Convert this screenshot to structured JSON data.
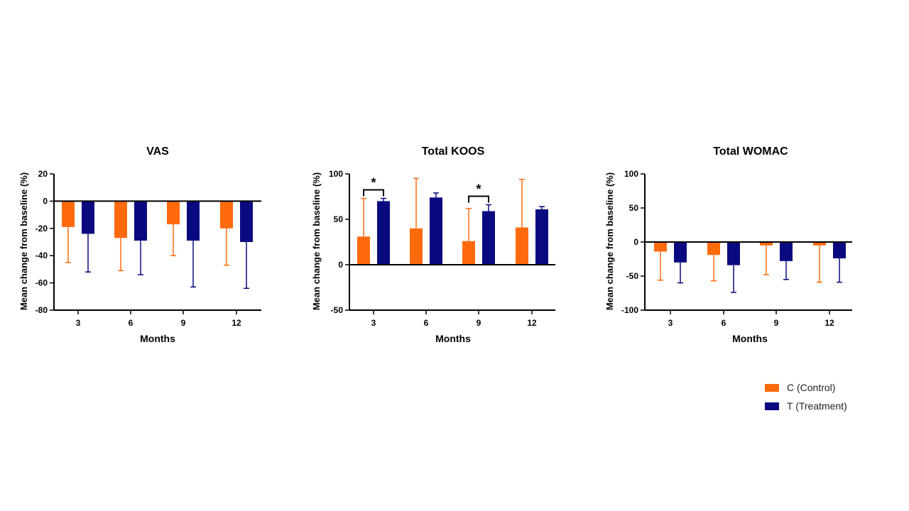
{
  "colors": {
    "control": "#FF6A0D",
    "treatment": "#0A0A80",
    "axis": "#000000"
  },
  "legend": {
    "placement": "bottom-right",
    "items": [
      {
        "label": "C (Control)",
        "color": "#FF6A0D"
      },
      {
        "label": "T (Treatment)",
        "color": "#0A0A80"
      }
    ]
  },
  "chart_data": [
    {
      "type": "bar",
      "title": "VAS",
      "xlabel": "Months",
      "ylabel": "Mean change from baseline (%)",
      "ylim": [
        -80,
        20
      ],
      "yticks": [
        20,
        0,
        -20,
        -40,
        -60,
        -80
      ],
      "categories": [
        "3",
        "6",
        "9",
        "12"
      ],
      "series": [
        {
          "name": "C (Control)",
          "values": [
            -19,
            -27,
            -17,
            -20
          ],
          "error": [
            26,
            24,
            23,
            27
          ]
        },
        {
          "name": "T (Treatment)",
          "values": [
            -24,
            -29,
            -29,
            -30
          ],
          "error": [
            28,
            25,
            34,
            34
          ]
        }
      ],
      "significance": []
    },
    {
      "type": "bar",
      "title": "Total KOOS",
      "xlabel": "Months",
      "ylabel": "Mean change from baseline (%)",
      "ylim": [
        -50,
        100
      ],
      "yticks": [
        100,
        50,
        0,
        -50
      ],
      "categories": [
        "3",
        "6",
        "9",
        "12"
      ],
      "series": [
        {
          "name": "C (Control)",
          "values": [
            31,
            40,
            26,
            41
          ],
          "error": [
            42,
            55,
            36,
            53
          ]
        },
        {
          "name": "T (Treatment)",
          "values": [
            70,
            74,
            59,
            61
          ],
          "error": [
            3,
            5,
            7,
            3
          ]
        }
      ],
      "significance": [
        {
          "category": "3",
          "label": "*"
        },
        {
          "category": "9",
          "label": "*"
        }
      ]
    },
    {
      "type": "bar",
      "title": "Total WOMAC",
      "xlabel": "Months",
      "ylabel": "Mean change from baseline (%)",
      "ylim": [
        -100,
        100
      ],
      "yticks": [
        100,
        50,
        0,
        -50,
        -100
      ],
      "categories": [
        "3",
        "6",
        "9",
        "12"
      ],
      "series": [
        {
          "name": "C (Control)",
          "values": [
            -14,
            -19,
            -5,
            -5
          ],
          "error": [
            42,
            38,
            43,
            54
          ]
        },
        {
          "name": "T (Treatment)",
          "values": [
            -30,
            -34,
            -28,
            -24
          ],
          "error": [
            30,
            40,
            27,
            35
          ]
        }
      ],
      "significance": []
    }
  ]
}
